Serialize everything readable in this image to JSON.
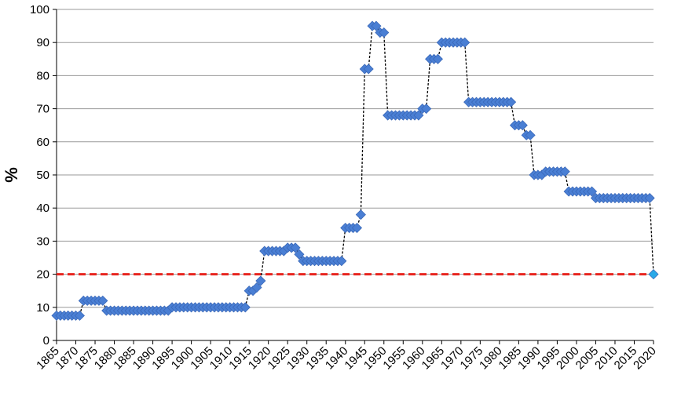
{
  "chart_data": {
    "type": "line",
    "ylabel": "%",
    "x": [
      1865,
      1866,
      1867,
      1868,
      1869,
      1870,
      1871,
      1872,
      1873,
      1874,
      1875,
      1876,
      1877,
      1878,
      1879,
      1880,
      1881,
      1882,
      1883,
      1884,
      1885,
      1886,
      1887,
      1888,
      1889,
      1890,
      1891,
      1892,
      1893,
      1894,
      1895,
      1896,
      1897,
      1898,
      1899,
      1900,
      1901,
      1902,
      1903,
      1904,
      1905,
      1906,
      1907,
      1908,
      1909,
      1910,
      1911,
      1912,
      1913,
      1914,
      1915,
      1916,
      1917,
      1918,
      1919,
      1920,
      1921,
      1922,
      1923,
      1924,
      1925,
      1926,
      1927,
      1928,
      1929,
      1930,
      1931,
      1932,
      1933,
      1934,
      1935,
      1936,
      1937,
      1938,
      1939,
      1940,
      1941,
      1942,
      1943,
      1944,
      1945,
      1946,
      1947,
      1948,
      1949,
      1950,
      1951,
      1952,
      1953,
      1954,
      1955,
      1956,
      1957,
      1958,
      1959,
      1960,
      1961,
      1962,
      1963,
      1964,
      1965,
      1966,
      1967,
      1968,
      1969,
      1970,
      1971,
      1972,
      1973,
      1974,
      1975,
      1976,
      1977,
      1978,
      1979,
      1980,
      1981,
      1982,
      1983,
      1984,
      1985,
      1986,
      1987,
      1988,
      1989,
      1990,
      1991,
      1992,
      1993,
      1994,
      1995,
      1996,
      1997,
      1998,
      1999,
      2000,
      2001,
      2002,
      2003,
      2004,
      2005,
      2006,
      2007,
      2008,
      2009,
      2010,
      2011,
      2012,
      2013,
      2014,
      2015,
      2016,
      2017,
      2018,
      2019,
      2020
    ],
    "series": [
      {
        "color": "#4a7fd4",
        "last_point_color": "#29a9e8",
        "values": [
          7.5,
          7.5,
          7.5,
          7.5,
          7.5,
          7.5,
          7.5,
          12,
          12,
          12,
          12,
          12,
          12,
          9,
          9,
          9,
          9,
          9,
          9,
          9,
          9,
          9,
          9,
          9,
          9,
          9,
          9,
          9,
          9,
          9,
          10,
          10,
          10,
          10,
          10,
          10,
          10,
          10,
          10,
          10,
          10,
          10,
          10,
          10,
          10,
          10,
          10,
          10,
          10,
          10,
          15,
          15,
          16,
          18,
          27,
          27,
          27,
          27,
          27,
          27,
          28,
          28,
          28,
          26,
          24,
          24,
          24,
          24,
          24,
          24,
          24,
          24,
          24,
          24,
          24,
          34,
          34,
          34,
          34,
          38,
          82,
          82,
          95,
          95,
          93,
          93,
          68,
          68,
          68,
          68,
          68,
          68,
          68,
          68,
          68,
          70,
          70,
          85,
          85,
          85,
          90,
          90,
          90,
          90,
          90,
          90,
          90,
          72,
          72,
          72,
          72,
          72,
          72,
          72,
          72,
          72,
          72,
          72,
          72,
          65,
          65,
          65,
          62,
          62,
          50,
          50,
          50,
          51,
          51,
          51,
          51,
          51,
          51,
          45,
          45,
          45,
          45,
          45,
          45,
          45,
          43,
          43,
          43,
          43,
          43,
          43,
          43,
          43,
          43,
          43,
          43,
          43,
          43,
          43,
          43,
          20
        ]
      }
    ],
    "reference_line": {
      "value": 20,
      "color": "#e8251f"
    },
    "xlim": [
      1865,
      2020
    ],
    "xticks": [
      1865,
      1870,
      1875,
      1880,
      1885,
      1890,
      1895,
      1900,
      1905,
      1910,
      1915,
      1920,
      1925,
      1930,
      1935,
      1940,
      1945,
      1950,
      1955,
      1960,
      1965,
      1970,
      1975,
      1980,
      1985,
      1990,
      1995,
      2000,
      2005,
      2010,
      2015,
      2020
    ],
    "ylim": [
      0,
      100
    ],
    "yticks": [
      0,
      10,
      20,
      30,
      40,
      50,
      60,
      70,
      80,
      90,
      100
    ],
    "grid": true
  }
}
